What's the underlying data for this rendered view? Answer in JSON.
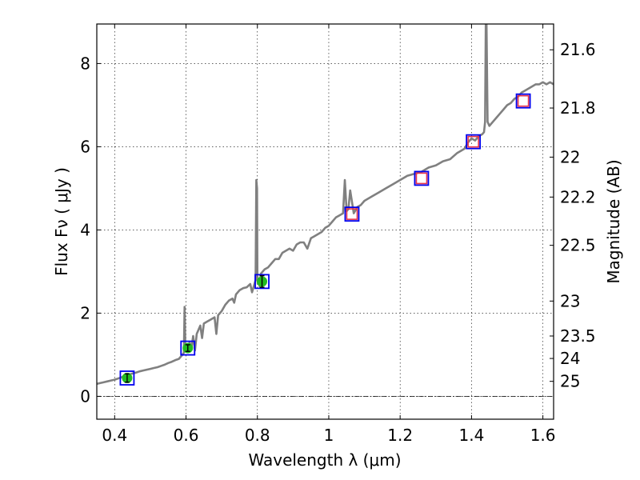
{
  "chart_data": {
    "type": "line",
    "xlabel": "Wavelength  λ (μm)",
    "ylabel": "Flux  Fν  ( μJy )",
    "ylabel_right": "Magnitude (AB)",
    "xlim": [
      0.35,
      1.63
    ],
    "ylim": [
      -0.55,
      8.95
    ],
    "xticks": [
      0.4,
      0.6,
      0.8,
      1.0,
      1.2,
      1.4,
      1.6
    ],
    "xtick_labels": [
      "0.4",
      "0.6",
      "0.8",
      "1",
      "1.2",
      "1.4",
      "1.6"
    ],
    "yticks": [
      0,
      2,
      4,
      6,
      8
    ],
    "ytick_labels": [
      "0",
      "2",
      "4",
      "6",
      "8"
    ],
    "right_ticks": [
      {
        "label": "21.6",
        "flux": 8.33
      },
      {
        "label": "21.8",
        "flux": 6.93
      },
      {
        "label": "22",
        "flux": 5.75
      },
      {
        "label": "22.2",
        "flux": 4.79
      },
      {
        "label": "22.5",
        "flux": 3.63
      },
      {
        "label": "23",
        "flux": 2.29
      },
      {
        "label": "23.5",
        "flux": 1.45
      },
      {
        "label": "24",
        "flux": 0.91
      },
      {
        "label": "25",
        "flux": 0.36
      }
    ],
    "hline_y": 0,
    "colors": {
      "spectrum": "#808080",
      "observed_fill": "#22bb22",
      "model_box": "#0000ee",
      "upper_limit_box": "#e8354a",
      "errorbar": "#000000"
    },
    "series": [
      {
        "name": "model spectrum",
        "x": [
          0.35,
          0.36,
          0.37,
          0.38,
          0.39,
          0.4,
          0.41,
          0.42,
          0.43,
          0.44,
          0.45,
          0.46,
          0.47,
          0.48,
          0.49,
          0.5,
          0.51,
          0.52,
          0.53,
          0.54,
          0.55,
          0.56,
          0.57,
          0.58,
          0.585,
          0.59,
          0.594,
          0.596,
          0.598,
          0.6,
          0.605,
          0.61,
          0.615,
          0.62,
          0.625,
          0.63,
          0.64,
          0.645,
          0.65,
          0.66,
          0.67,
          0.68,
          0.685,
          0.69,
          0.7,
          0.71,
          0.72,
          0.73,
          0.735,
          0.74,
          0.75,
          0.76,
          0.77,
          0.78,
          0.785,
          0.79,
          0.795,
          0.797,
          0.799,
          0.8,
          0.801,
          0.803,
          0.806,
          0.81,
          0.82,
          0.83,
          0.84,
          0.85,
          0.86,
          0.87,
          0.88,
          0.89,
          0.9,
          0.91,
          0.92,
          0.93,
          0.94,
          0.95,
          0.96,
          0.97,
          0.98,
          0.99,
          1.0,
          1.01,
          1.02,
          1.03,
          1.04,
          1.045,
          1.05,
          1.055,
          1.06,
          1.07,
          1.08,
          1.09,
          1.1,
          1.12,
          1.14,
          1.16,
          1.18,
          1.2,
          1.22,
          1.24,
          1.26,
          1.28,
          1.3,
          1.32,
          1.34,
          1.36,
          1.37,
          1.38,
          1.39,
          1.4,
          1.41,
          1.42,
          1.43,
          1.435,
          1.438,
          1.44,
          1.442,
          1.445,
          1.45,
          1.46,
          1.47,
          1.48,
          1.49,
          1.5,
          1.51,
          1.52,
          1.53,
          1.54,
          1.55,
          1.56,
          1.57,
          1.58,
          1.59,
          1.6,
          1.61,
          1.62,
          1.63
        ],
        "y": [
          0.3,
          0.32,
          0.34,
          0.36,
          0.38,
          0.4,
          0.43,
          0.46,
          0.5,
          0.52,
          0.55,
          0.57,
          0.6,
          0.62,
          0.64,
          0.66,
          0.68,
          0.7,
          0.73,
          0.76,
          0.8,
          0.83,
          0.87,
          0.9,
          0.95,
          1.0,
          1.05,
          2.15,
          1.2,
          1.15,
          1.1,
          1.3,
          1.15,
          1.45,
          1.1,
          1.5,
          1.7,
          1.4,
          1.75,
          1.8,
          1.85,
          1.9,
          1.5,
          1.95,
          2.05,
          2.2,
          2.3,
          2.35,
          2.25,
          2.45,
          2.55,
          2.6,
          2.62,
          2.7,
          2.5,
          2.65,
          2.8,
          5.2,
          5.0,
          2.9,
          2.7,
          2.8,
          2.65,
          2.95,
          3.05,
          3.1,
          3.2,
          3.3,
          3.3,
          3.45,
          3.5,
          3.55,
          3.5,
          3.65,
          3.7,
          3.7,
          3.55,
          3.8,
          3.85,
          3.9,
          3.95,
          4.05,
          4.1,
          4.2,
          4.3,
          4.35,
          4.4,
          5.2,
          4.45,
          4.5,
          4.95,
          4.4,
          4.55,
          4.6,
          4.7,
          4.8,
          4.9,
          5.0,
          5.1,
          5.2,
          5.3,
          5.35,
          5.4,
          5.5,
          5.55,
          5.65,
          5.7,
          5.85,
          5.9,
          5.95,
          6.1,
          6.2,
          6.15,
          6.25,
          6.3,
          6.35,
          6.6,
          8.95,
          8.95,
          6.6,
          6.5,
          6.6,
          6.7,
          6.8,
          6.9,
          7.0,
          7.05,
          7.15,
          7.2,
          7.3,
          7.35,
          7.4,
          7.45,
          7.5,
          7.5,
          7.55,
          7.5,
          7.55,
          7.5
        ]
      }
    ],
    "observed_points": [
      {
        "x": 0.435,
        "y": 0.44,
        "yerr": 0.1
      },
      {
        "x": 0.605,
        "y": 1.16,
        "yerr": 0.08
      },
      {
        "x": 0.813,
        "y": 2.76,
        "yerr": 0.14
      }
    ],
    "model_photometry": [
      {
        "x": 0.435,
        "y": 0.44
      },
      {
        "x": 0.605,
        "y": 1.16
      },
      {
        "x": 0.813,
        "y": 2.76
      },
      {
        "x": 1.065,
        "y": 4.38
      },
      {
        "x": 1.26,
        "y": 5.24
      },
      {
        "x": 1.405,
        "y": 6.12
      },
      {
        "x": 1.545,
        "y": 7.1
      }
    ],
    "upper_limit_points": [
      {
        "x": 1.065,
        "y": 4.38
      },
      {
        "x": 1.26,
        "y": 5.24
      },
      {
        "x": 1.405,
        "y": 6.12
      },
      {
        "x": 1.545,
        "y": 7.1
      }
    ]
  }
}
